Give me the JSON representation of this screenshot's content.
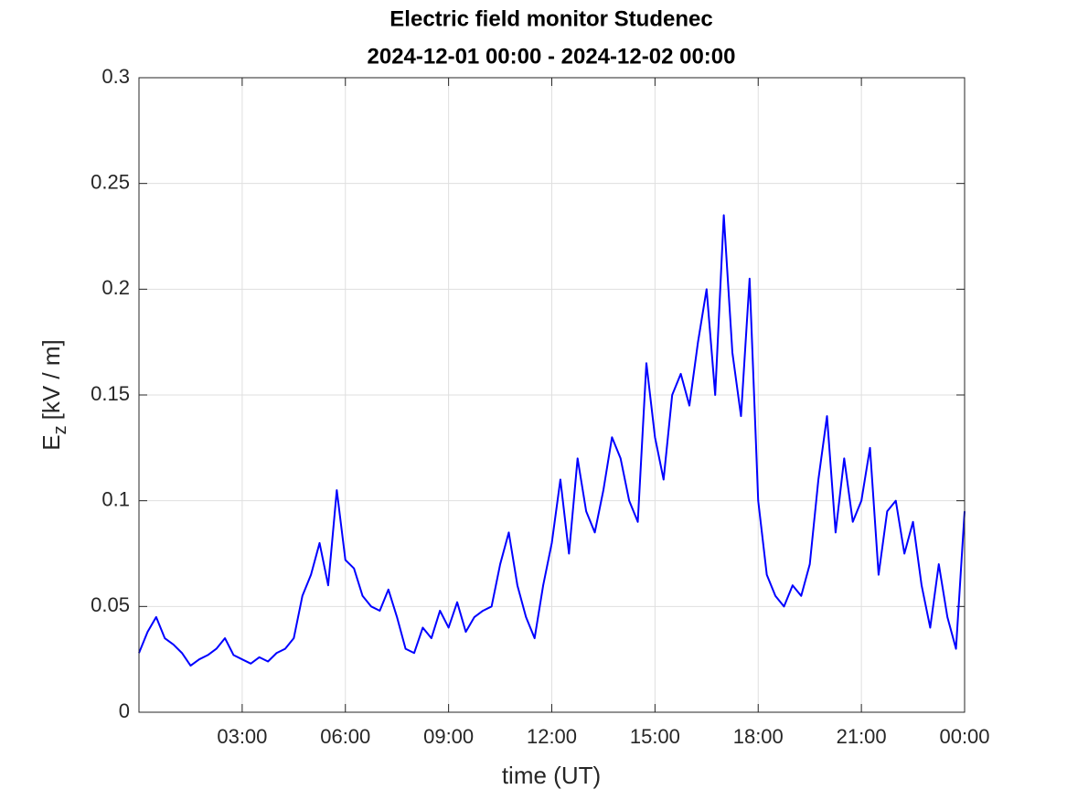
{
  "chart_data": {
    "type": "line",
    "title": "Electric field monitor Studenec",
    "subtitle": "2024-12-01 00:00 - 2024-12-02 00:00",
    "x_label": "time (UT)",
    "y_label": {
      "main": "E",
      "sub": "z",
      "unit": "[kV / m]"
    },
    "x": [
      0,
      0.25,
      0.5,
      0.75,
      1,
      1.25,
      1.5,
      1.75,
      2,
      2.25,
      2.5,
      2.75,
      3,
      3.25,
      3.5,
      3.75,
      4,
      4.25,
      4.5,
      4.75,
      5,
      5.25,
      5.5,
      5.75,
      6,
      6.25,
      6.5,
      6.75,
      7,
      7.25,
      7.5,
      7.75,
      8,
      8.25,
      8.5,
      8.75,
      9,
      9.25,
      9.5,
      9.75,
      10,
      10.25,
      10.5,
      10.75,
      11,
      11.25,
      11.5,
      11.75,
      12,
      12.25,
      12.5,
      12.75,
      13,
      13.25,
      13.5,
      13.75,
      14,
      14.25,
      14.5,
      14.75,
      15,
      15.25,
      15.5,
      15.75,
      16,
      16.25,
      16.5,
      16.75,
      17,
      17.25,
      17.5,
      17.75,
      18,
      18.25,
      18.5,
      18.75,
      19,
      19.25,
      19.5,
      19.75,
      20,
      20.25,
      20.5,
      20.75,
      21,
      21.25,
      21.5,
      21.75,
      22,
      22.25,
      22.5,
      22.75,
      23,
      23.25,
      23.5,
      23.75,
      24
    ],
    "series": [
      {
        "name": "Ez",
        "color": "#0000ff",
        "values": [
          0.028,
          0.038,
          0.045,
          0.035,
          0.032,
          0.028,
          0.022,
          0.025,
          0.027,
          0.03,
          0.035,
          0.027,
          0.025,
          0.023,
          0.026,
          0.024,
          0.028,
          0.03,
          0.035,
          0.055,
          0.065,
          0.08,
          0.06,
          0.105,
          0.072,
          0.068,
          0.055,
          0.05,
          0.048,
          0.058,
          0.045,
          0.03,
          0.028,
          0.04,
          0.035,
          0.048,
          0.04,
          0.052,
          0.038,
          0.045,
          0.048,
          0.05,
          0.07,
          0.085,
          0.06,
          0.045,
          0.035,
          0.06,
          0.08,
          0.11,
          0.075,
          0.12,
          0.095,
          0.085,
          0.105,
          0.13,
          0.12,
          0.1,
          0.09,
          0.165,
          0.13,
          0.11,
          0.15,
          0.16,
          0.145,
          0.175,
          0.2,
          0.15,
          0.235,
          0.17,
          0.14,
          0.205,
          0.1,
          0.065,
          0.055,
          0.05,
          0.06,
          0.055,
          0.07,
          0.11,
          0.14,
          0.085,
          0.12,
          0.09,
          0.1,
          0.125,
          0.065,
          0.095,
          0.1,
          0.075,
          0.09,
          0.06,
          0.04,
          0.07,
          0.045,
          0.03,
          0.095
        ]
      }
    ],
    "xlim": [
      0,
      24
    ],
    "xticks": [
      {
        "value": 3,
        "label": "03:00"
      },
      {
        "value": 6,
        "label": "06:00"
      },
      {
        "value": 9,
        "label": "09:00"
      },
      {
        "value": 12,
        "label": "12:00"
      },
      {
        "value": 15,
        "label": "15:00"
      },
      {
        "value": 18,
        "label": "18:00"
      },
      {
        "value": 21,
        "label": "21:00"
      },
      {
        "value": 24,
        "label": "00:00"
      }
    ],
    "ylim": [
      0,
      0.3
    ],
    "yticks": [
      0,
      0.05,
      0.1,
      0.15,
      0.2,
      0.25,
      0.3
    ],
    "grid": true
  }
}
